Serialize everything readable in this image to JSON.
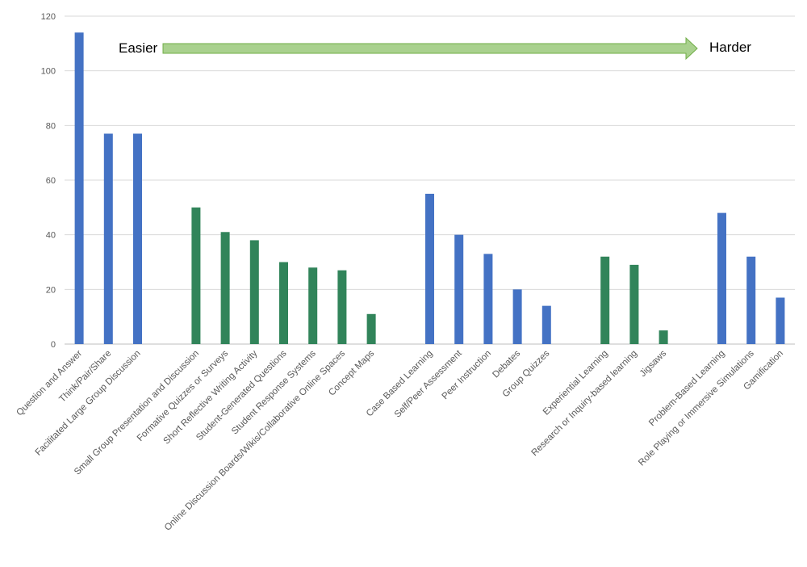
{
  "chart_data": {
    "type": "bar",
    "title": "",
    "xlabel": "",
    "ylabel": "",
    "ylim": [
      0,
      120
    ],
    "yticks": [
      0,
      20,
      40,
      60,
      80,
      100,
      120
    ],
    "grid": true,
    "categories": [
      "Question and Answer",
      "Think/Pair/Share",
      "Facilitated Large Group Discussion",
      "",
      "Small Group Presentation and Discussion",
      "Formative Quizzes or Surveys",
      "Short Reflective Writing Activity",
      "Student-Generated Questions",
      "Student Response Systems",
      "Online Discussion Boards/Wikis/Collaborative Online Spaces",
      "Concept Maps",
      "",
      "Case Based Learning",
      "Self/Peer Assessment",
      "Peer Instruction",
      "Debates",
      "Group Quizzes",
      "",
      "Experiential Learning",
      "Research or Inquiry-based learning",
      "Jigsaws",
      "",
      "Problem-Based Learning",
      "Role Playing or Immersive Simulations",
      "Gamification"
    ],
    "values": [
      114,
      77,
      77,
      null,
      50,
      41,
      38,
      30,
      28,
      27,
      11,
      null,
      55,
      40,
      33,
      20,
      14,
      null,
      32,
      29,
      5,
      null,
      48,
      32,
      17
    ],
    "bar_groups": [
      "blue",
      "blue",
      "blue",
      null,
      "green",
      "green",
      "green",
      "green",
      "green",
      "green",
      "green",
      null,
      "blue",
      "blue",
      "blue",
      "blue",
      "blue",
      null,
      "green",
      "green",
      "green",
      null,
      "blue",
      "blue",
      "blue"
    ],
    "colors": {
      "blue": "#4472c4",
      "green": "#31845a",
      "grid": "#d9d9d9",
      "axis": "#bfbfbf",
      "arrow_fill": "#a9d18e",
      "arrow_stroke": "#70ad47"
    },
    "annotations": {
      "arrow_start_label": "Easier",
      "arrow_end_label": "Harder"
    }
  }
}
